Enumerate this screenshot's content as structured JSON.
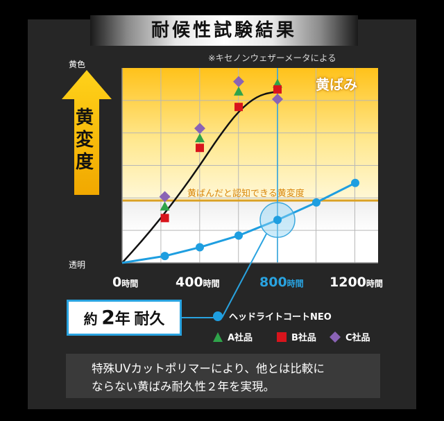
{
  "title": "耐候性試験結果",
  "note": "※キセノンウェザーメータによる",
  "y_axis": {
    "top_label": "黄色",
    "bottom_label": "透明",
    "arrow_label": "黄変度"
  },
  "yellow_zone_label": "黄ばみ",
  "threshold_label": "黄ばんだと認知できる黄変度",
  "x_ticks": [
    {
      "value": "0",
      "unit": "時間"
    },
    {
      "value": "400",
      "unit": "時間"
    },
    {
      "value": "800",
      "unit": "時間"
    },
    {
      "value": "1200",
      "unit": "時間"
    }
  ],
  "badge": {
    "prefix": "約",
    "number": "2",
    "year": "年",
    "suffix": "耐久"
  },
  "legend": [
    {
      "label": "ヘッドライトコートNEO",
      "shape": "circle",
      "color": "#1e9ee0"
    },
    {
      "label": "A社品",
      "shape": "triangle",
      "color": "#2fa34a"
    },
    {
      "label": "B社品",
      "shape": "square",
      "color": "#d8141c"
    },
    {
      "label": "C社品",
      "shape": "diamond",
      "color": "#8a63b5"
    }
  ],
  "message": {
    "line1": "特殊UVカットポリマーにより、他とは比較に",
    "line2": "ならない黄ばみ耐久性２年を実現。"
  },
  "chart_data": {
    "type": "scatter",
    "title": "耐候性試験結果",
    "xlabel": "",
    "ylabel": "黄変度",
    "xlim": [
      0,
      1300
    ],
    "ylim": [
      0,
      100
    ],
    "x_ticks": [
      0,
      400,
      800,
      1200
    ],
    "highlight_x": 800,
    "threshold": 32,
    "grid": true,
    "series": [
      {
        "name": "ヘッドライトコートNEO",
        "shape": "circle",
        "color": "#1e9ee0",
        "points": [
          [
            0,
            0
          ],
          [
            220,
            3.5
          ],
          [
            400,
            8
          ],
          [
            600,
            14
          ],
          [
            800,
            22
          ],
          [
            1000,
            31
          ],
          [
            1200,
            41
          ]
        ]
      },
      {
        "name": "A社品",
        "shape": "triangle",
        "color": "#2fa34a",
        "points": [
          [
            220,
            29
          ],
          [
            400,
            64
          ],
          [
            600,
            88
          ],
          [
            800,
            92
          ]
        ]
      },
      {
        "name": "B社品",
        "shape": "square",
        "color": "#d8141c",
        "points": [
          [
            220,
            23
          ],
          [
            400,
            59
          ],
          [
            600,
            80
          ],
          [
            800,
            89
          ]
        ]
      },
      {
        "name": "C社品",
        "shape": "diamond",
        "color": "#8a63b5",
        "points": [
          [
            220,
            34
          ],
          [
            400,
            69
          ],
          [
            600,
            93
          ],
          [
            800,
            84
          ]
        ]
      }
    ],
    "trend_curve": [
      [
        0,
        0
      ],
      [
        100,
        11
      ],
      [
        200,
        23
      ],
      [
        300,
        36
      ],
      [
        400,
        50
      ],
      [
        500,
        65
      ],
      [
        600,
        78
      ],
      [
        700,
        86
      ],
      [
        800,
        88
      ]
    ]
  }
}
